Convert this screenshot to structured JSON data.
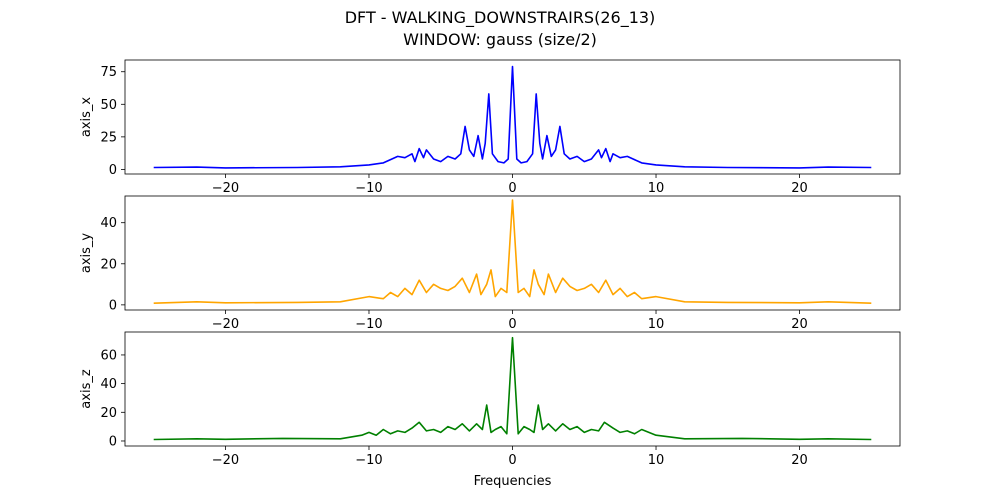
{
  "figure": {
    "title_line1": "DFT - WALKING_DOWNSTRAIRS(26_13)",
    "title_line2": "WINDOW: gauss (size/2)",
    "xlabel": "Frequencies"
  },
  "chart_data": [
    {
      "type": "line",
      "ylabel": "axis_x",
      "color": "#0000ff",
      "xlim": [
        -27,
        27
      ],
      "ylim": [
        -3.5,
        84
      ],
      "xticks": [
        -20,
        -10,
        0,
        10,
        20
      ],
      "yticks": [
        0,
        25,
        50,
        75
      ],
      "x": [
        -25,
        -22,
        -20,
        -15,
        -12,
        -10,
        -9,
        -8.4,
        -8,
        -7.5,
        -7,
        -6.8,
        -6.5,
        -6.2,
        -6,
        -5.5,
        -5,
        -4.5,
        -4,
        -3.6,
        -3.3,
        -3,
        -2.7,
        -2.4,
        -2.1,
        -1.9,
        -1.65,
        -1.4,
        -1,
        -0.6,
        -0.3,
        0,
        0.3,
        0.6,
        1,
        1.4,
        1.65,
        1.9,
        2.1,
        2.4,
        2.7,
        3,
        3.3,
        3.6,
        4,
        4.5,
        5,
        5.5,
        6,
        6.2,
        6.5,
        6.8,
        7,
        7.5,
        8,
        8.4,
        9,
        10,
        12,
        15,
        20,
        22,
        25
      ],
      "y": [
        1.5,
        1.8,
        1.2,
        1.5,
        2.0,
        3.5,
        5.0,
        8.0,
        10.0,
        9.0,
        12.0,
        6.0,
        16.0,
        9.0,
        15.0,
        8.0,
        6.0,
        10.0,
        8.0,
        12.0,
        33.0,
        15.0,
        10.0,
        26.0,
        8.0,
        20.0,
        58.0,
        12.0,
        6.0,
        5.0,
        8.0,
        79.0,
        8.0,
        5.0,
        6.0,
        12.0,
        58.0,
        20.0,
        8.0,
        26.0,
        10.0,
        15.0,
        33.0,
        12.0,
        8.0,
        10.0,
        6.0,
        8.0,
        15.0,
        9.0,
        16.0,
        6.0,
        12.0,
        9.0,
        10.0,
        8.0,
        5.0,
        3.5,
        2.0,
        1.5,
        1.2,
        1.8,
        1.5
      ]
    },
    {
      "type": "line",
      "ylabel": "axis_y",
      "color": "#ffa500",
      "xlim": [
        -27,
        27
      ],
      "ylim": [
        -2.5,
        53
      ],
      "xticks": [
        -20,
        -10,
        0,
        10,
        20
      ],
      "yticks": [
        0,
        20,
        40
      ],
      "x": [
        -25,
        -22,
        -20,
        -15,
        -12,
        -10,
        -9,
        -8.5,
        -8,
        -7.5,
        -7,
        -6.5,
        -6,
        -5.5,
        -5,
        -4.5,
        -4,
        -3.5,
        -3,
        -2.5,
        -2.2,
        -1.8,
        -1.5,
        -1.2,
        -0.8,
        -0.4,
        0,
        0.4,
        0.8,
        1.2,
        1.5,
        1.8,
        2.2,
        2.5,
        3,
        3.5,
        4,
        4.5,
        5,
        5.5,
        6,
        6.5,
        7,
        7.5,
        8,
        8.5,
        9,
        10,
        12,
        15,
        20,
        22,
        25
      ],
      "y": [
        0.8,
        1.5,
        1.0,
        1.2,
        1.5,
        4.0,
        3.0,
        6.0,
        4.0,
        8.0,
        5.0,
        12.0,
        6.0,
        10.0,
        8.0,
        7.0,
        9.0,
        13.0,
        6.0,
        15.0,
        5.0,
        10.0,
        17.0,
        4.0,
        8.0,
        6.0,
        51.0,
        6.0,
        8.0,
        4.0,
        17.0,
        10.0,
        5.0,
        15.0,
        6.0,
        13.0,
        9.0,
        7.0,
        8.0,
        10.0,
        6.0,
        12.0,
        5.0,
        8.0,
        4.0,
        6.0,
        3.0,
        4.0,
        1.5,
        1.2,
        1.0,
        1.5,
        0.8
      ]
    },
    {
      "type": "line",
      "ylabel": "axis_z",
      "color": "#008000",
      "xlim": [
        -27,
        27
      ],
      "ylim": [
        -3.5,
        76
      ],
      "xticks": [
        -20,
        -10,
        0,
        10,
        20
      ],
      "yticks": [
        0,
        20,
        40,
        60
      ],
      "x": [
        -25,
        -22,
        -20,
        -16,
        -12,
        -10.5,
        -10,
        -9.5,
        -9,
        -8.5,
        -8,
        -7.5,
        -7,
        -6.5,
        -6,
        -5.5,
        -5,
        -4.5,
        -4,
        -3.5,
        -3,
        -2.5,
        -2.1,
        -1.8,
        -1.5,
        -1.2,
        -0.8,
        -0.4,
        0,
        0.4,
        0.8,
        1.2,
        1.5,
        1.8,
        2.1,
        2.5,
        3,
        3.5,
        4,
        4.5,
        5,
        5.5,
        6,
        6.4,
        7,
        7.5,
        8,
        8.5,
        9,
        10,
        12,
        16,
        20,
        22,
        25
      ],
      "y": [
        1.0,
        1.5,
        1.2,
        1.8,
        1.5,
        4.0,
        6.0,
        4.0,
        8.0,
        5.0,
        7.0,
        6.0,
        9.0,
        13.0,
        7.0,
        8.0,
        6.0,
        10.0,
        8.0,
        12.0,
        7.0,
        12.0,
        8.0,
        25.0,
        6.0,
        8.0,
        10.0,
        5.0,
        72.0,
        5.0,
        10.0,
        8.0,
        6.0,
        25.0,
        8.0,
        12.0,
        7.0,
        12.0,
        8.0,
        10.0,
        6.0,
        8.0,
        7.0,
        13.0,
        9.0,
        6.0,
        7.0,
        5.0,
        8.0,
        4.0,
        1.5,
        1.8,
        1.2,
        1.5,
        1.0
      ]
    }
  ]
}
